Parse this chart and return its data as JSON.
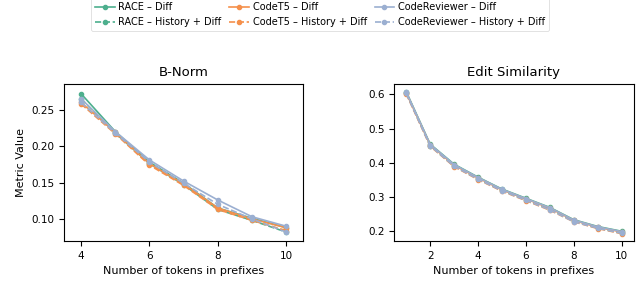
{
  "bnorm": {
    "x": [
      4,
      5,
      6,
      7,
      8,
      9,
      10
    ],
    "race_diff": [
      0.272,
      0.22,
      0.178,
      0.149,
      0.115,
      0.101,
      0.088
    ],
    "race_hist": [
      0.265,
      0.218,
      0.176,
      0.147,
      0.113,
      0.098,
      0.082
    ],
    "codet5_diff": [
      0.26,
      0.219,
      0.176,
      0.148,
      0.115,
      0.1,
      0.088
    ],
    "codet5_hist": [
      0.258,
      0.217,
      0.174,
      0.146,
      0.113,
      0.098,
      0.084
    ],
    "coderev_diff": [
      0.265,
      0.22,
      0.181,
      0.152,
      0.126,
      0.103,
      0.09
    ],
    "coderev_hist": [
      0.26,
      0.218,
      0.178,
      0.149,
      0.12,
      0.1,
      0.082
    ]
  },
  "editsim": {
    "x": [
      1,
      2,
      3,
      4,
      5,
      6,
      7,
      8,
      9,
      10
    ],
    "race_diff": [
      0.608,
      0.454,
      0.395,
      0.357,
      0.322,
      0.295,
      0.268,
      0.232,
      0.212,
      0.198
    ],
    "race_hist": [
      0.605,
      0.45,
      0.39,
      0.352,
      0.318,
      0.29,
      0.263,
      0.228,
      0.208,
      0.193
    ],
    "codet5_diff": [
      0.605,
      0.452,
      0.392,
      0.355,
      0.32,
      0.293,
      0.266,
      0.23,
      0.21,
      0.196
    ],
    "codet5_hist": [
      0.602,
      0.448,
      0.388,
      0.35,
      0.316,
      0.288,
      0.26,
      0.226,
      0.206,
      0.191
    ],
    "coderev_diff": [
      0.607,
      0.453,
      0.394,
      0.356,
      0.321,
      0.294,
      0.267,
      0.231,
      0.211,
      0.197
    ],
    "coderev_hist": [
      0.603,
      0.449,
      0.389,
      0.351,
      0.317,
      0.289,
      0.261,
      0.226,
      0.207,
      0.192
    ]
  },
  "colors": {
    "race": "#4daf8d",
    "codet5": "#f5904b",
    "coderev": "#9bafd1"
  },
  "title_bnorm": "B-Norm",
  "title_editsim": "Edit Similarity",
  "xlabel": "Number of tokens in prefixes",
  "ylabel": "Metric Value",
  "legend": {
    "race_diff": "RACE – Diff",
    "race_hist": "RACE – History + Diff",
    "codet5_diff": "CodeT5 – Diff",
    "codet5_hist": "CodeT5 – History + Diff",
    "coderev_diff": "CodeReviewer – Diff",
    "coderev_hist": "CodeReviewer – History + Diff"
  }
}
